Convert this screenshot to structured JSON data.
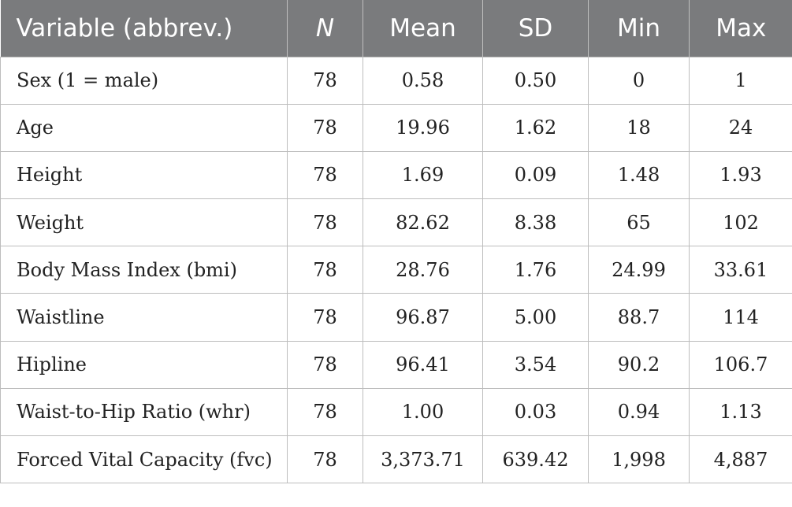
{
  "header": {
    "variable": "Variable (abbrev.)",
    "n": "N",
    "mean": "Mean",
    "sd": "SD",
    "min": "Min",
    "max": "Max"
  },
  "rows": [
    {
      "variable": "Sex (1 = male)",
      "n": "78",
      "mean": "0.58",
      "sd": "0.50",
      "min": "0",
      "max": "1"
    },
    {
      "variable": "Age",
      "n": "78",
      "mean": "19.96",
      "sd": "1.62",
      "min": "18",
      "max": "24"
    },
    {
      "variable": "Height",
      "n": "78",
      "mean": "1.69",
      "sd": "0.09",
      "min": "1.48",
      "max": "1.93"
    },
    {
      "variable": "Weight",
      "n": "78",
      "mean": "82.62",
      "sd": "8.38",
      "min": "65",
      "max": "102"
    },
    {
      "variable": "Body Mass Index (bmi)",
      "n": "78",
      "mean": "28.76",
      "sd": "1.76",
      "min": "24.99",
      "max": "33.61"
    },
    {
      "variable": "Waistline",
      "n": "78",
      "mean": "96.87",
      "sd": "5.00",
      "min": "88.7",
      "max": "114"
    },
    {
      "variable": "Hipline",
      "n": "78",
      "mean": "96.41",
      "sd": "3.54",
      "min": "90.2",
      "max": "106.7"
    },
    {
      "variable": "Waist-to-Hip Ratio (whr)",
      "n": "78",
      "mean": "1.00",
      "sd": "0.03",
      "min": "0.94",
      "max": "1.13"
    },
    {
      "variable": "Forced Vital Capacity (fvc)",
      "n": "78",
      "mean": "3,373.71",
      "sd": "639.42",
      "min": "1,998",
      "max": "4,887"
    }
  ]
}
